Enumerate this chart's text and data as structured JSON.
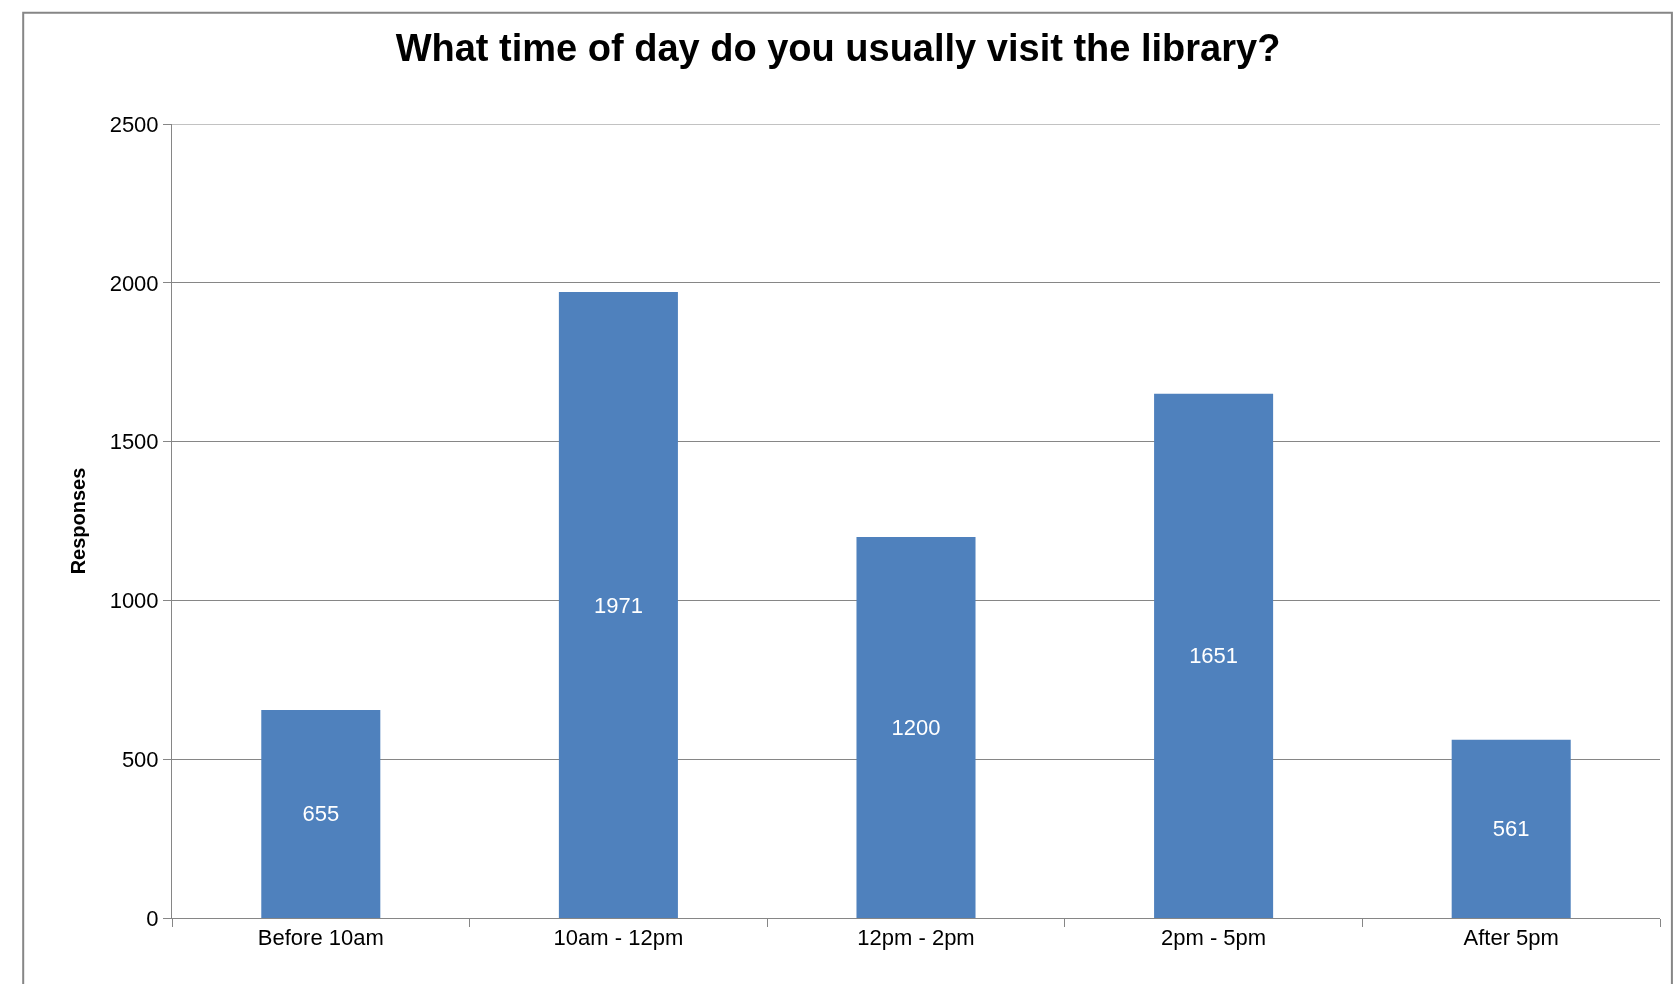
{
  "chart_data": {
    "type": "bar",
    "title": "What time of day do you usually visit the library?",
    "ylabel": "Responses",
    "categories": [
      "Before 10am",
      "10am - 12pm",
      "12pm - 2pm",
      "2pm - 5pm",
      "After 5pm"
    ],
    "values": [
      655,
      1971,
      1200,
      1651,
      561
    ],
    "color": "#4f81bd",
    "ylim": [
      0,
      2500
    ],
    "yticks": [
      0,
      500,
      1000,
      1500,
      2000,
      2500
    ],
    "grid": "y",
    "data_labels": true
  }
}
